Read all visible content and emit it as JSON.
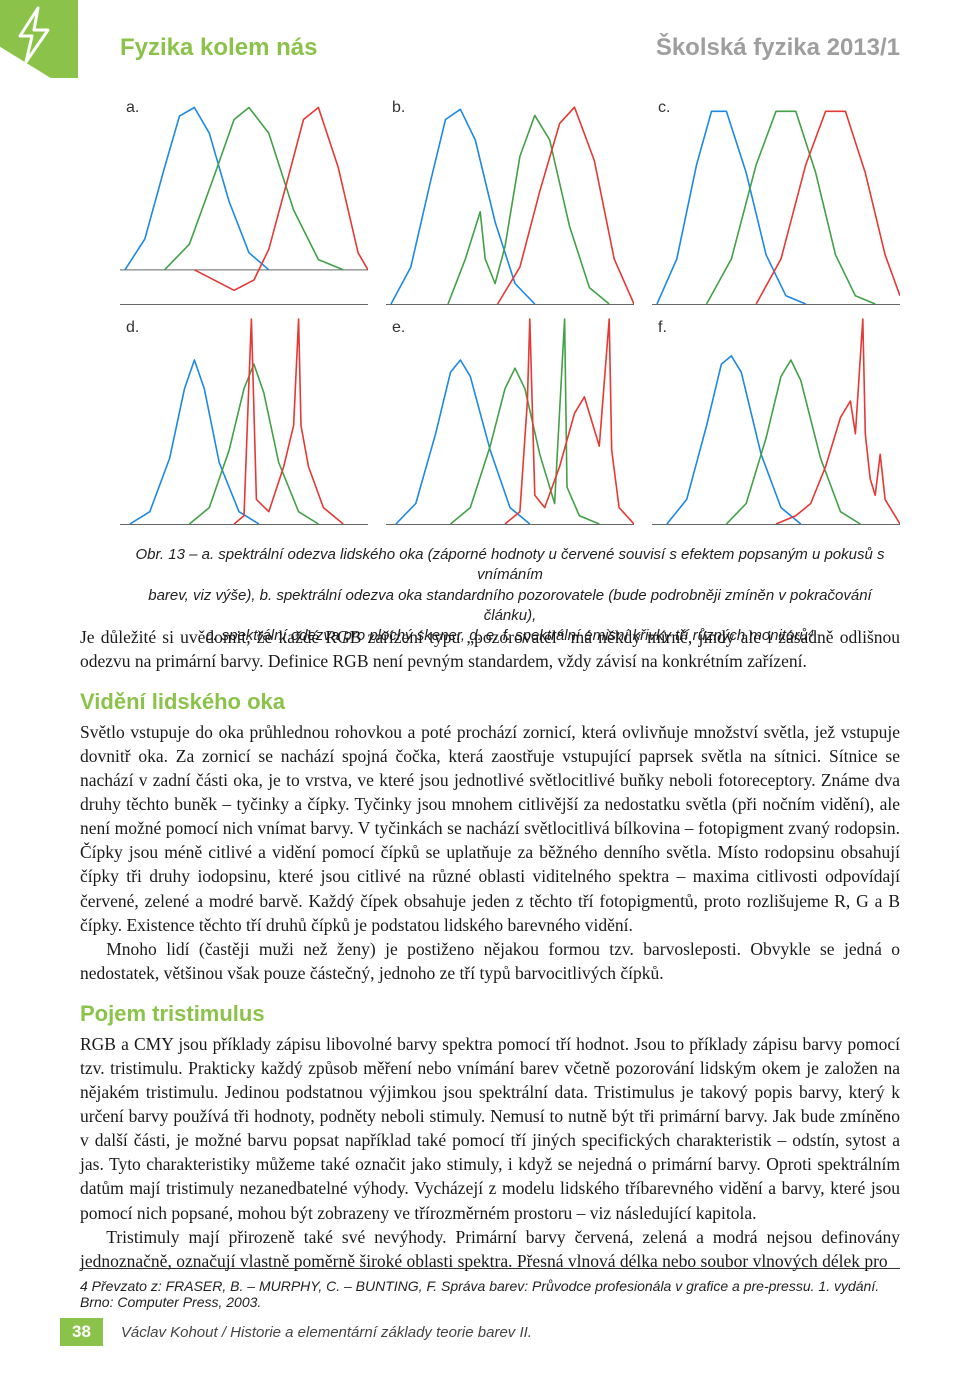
{
  "header": {
    "left": "Fyzika kolem nás",
    "right": "Školská fyzika 2013/1"
  },
  "accent_color": "#8bc34a",
  "muted_color": "#9e9e9e",
  "figure": {
    "panels": [
      "a.",
      "b.",
      "c.",
      "d.",
      "e.",
      "f."
    ],
    "curve_colors": {
      "R": "#e53935",
      "G": "#43a047",
      "B": "#1e88e5"
    },
    "line_width": 1.6,
    "background": "#ffffff",
    "axis_color": "#666666",
    "panel_a": {
      "type": "line",
      "xlim": [
        0,
        100
      ],
      "ylim": [
        -20,
        100
      ],
      "series": {
        "B": [
          [
            2,
            0
          ],
          [
            10,
            18
          ],
          [
            18,
            60
          ],
          [
            24,
            90
          ],
          [
            30,
            95
          ],
          [
            36,
            80
          ],
          [
            44,
            40
          ],
          [
            52,
            10
          ],
          [
            60,
            0
          ]
        ],
        "G": [
          [
            18,
            0
          ],
          [
            28,
            15
          ],
          [
            38,
            55
          ],
          [
            46,
            88
          ],
          [
            52,
            95
          ],
          [
            60,
            80
          ],
          [
            70,
            35
          ],
          [
            80,
            6
          ],
          [
            90,
            0
          ]
        ],
        "R": [
          [
            30,
            0
          ],
          [
            38,
            -6
          ],
          [
            46,
            -12
          ],
          [
            54,
            -6
          ],
          [
            60,
            12
          ],
          [
            68,
            55
          ],
          [
            74,
            88
          ],
          [
            80,
            95
          ],
          [
            88,
            60
          ],
          [
            96,
            10
          ],
          [
            100,
            0
          ]
        ]
      }
    },
    "panel_b": {
      "type": "line",
      "xlim": [
        0,
        100
      ],
      "ylim": [
        0,
        100
      ],
      "series": {
        "B": [
          [
            2,
            0
          ],
          [
            10,
            18
          ],
          [
            18,
            60
          ],
          [
            24,
            90
          ],
          [
            30,
            95
          ],
          [
            36,
            80
          ],
          [
            44,
            40
          ],
          [
            52,
            10
          ],
          [
            60,
            0
          ]
        ],
        "G": [
          [
            25,
            0
          ],
          [
            32,
            22
          ],
          [
            38,
            45
          ],
          [
            40,
            22
          ],
          [
            44,
            10
          ],
          [
            48,
            28
          ],
          [
            54,
            72
          ],
          [
            60,
            92
          ],
          [
            66,
            80
          ],
          [
            74,
            38
          ],
          [
            82,
            8
          ],
          [
            90,
            0
          ]
        ],
        "R": [
          [
            45,
            0
          ],
          [
            54,
            18
          ],
          [
            62,
            55
          ],
          [
            70,
            88
          ],
          [
            76,
            96
          ],
          [
            84,
            70
          ],
          [
            92,
            22
          ],
          [
            100,
            0
          ]
        ]
      }
    },
    "panel_c": {
      "type": "line",
      "xlim": [
        0,
        100
      ],
      "ylim": [
        0,
        100
      ],
      "series": {
        "B": [
          [
            2,
            0
          ],
          [
            10,
            22
          ],
          [
            18,
            68
          ],
          [
            24,
            94
          ],
          [
            30,
            94
          ],
          [
            38,
            64
          ],
          [
            46,
            24
          ],
          [
            54,
            4
          ],
          [
            62,
            0
          ]
        ],
        "G": [
          [
            22,
            0
          ],
          [
            32,
            22
          ],
          [
            42,
            68
          ],
          [
            50,
            94
          ],
          [
            58,
            94
          ],
          [
            66,
            64
          ],
          [
            74,
            24
          ],
          [
            82,
            4
          ],
          [
            90,
            0
          ]
        ],
        "R": [
          [
            42,
            0
          ],
          [
            52,
            22
          ],
          [
            62,
            68
          ],
          [
            70,
            94
          ],
          [
            78,
            94
          ],
          [
            86,
            64
          ],
          [
            94,
            24
          ],
          [
            100,
            4
          ]
        ]
      }
    },
    "panel_d": {
      "type": "line",
      "xlim": [
        0,
        100
      ],
      "ylim": [
        0,
        100
      ],
      "series": {
        "B": [
          [
            4,
            0
          ],
          [
            12,
            6
          ],
          [
            20,
            32
          ],
          [
            26,
            66
          ],
          [
            30,
            80
          ],
          [
            34,
            66
          ],
          [
            40,
            30
          ],
          [
            48,
            6
          ],
          [
            56,
            0
          ]
        ],
        "G": [
          [
            28,
            0
          ],
          [
            36,
            8
          ],
          [
            44,
            36
          ],
          [
            50,
            66
          ],
          [
            54,
            78
          ],
          [
            58,
            64
          ],
          [
            64,
            30
          ],
          [
            72,
            6
          ],
          [
            80,
            0
          ]
        ],
        "R": [
          [
            46,
            0
          ],
          [
            50,
            4
          ],
          [
            52,
            70
          ],
          [
            53,
            100
          ],
          [
            55,
            12
          ],
          [
            60,
            6
          ],
          [
            66,
            28
          ],
          [
            70,
            48
          ],
          [
            72,
            100
          ],
          [
            73,
            48
          ],
          [
            76,
            28
          ],
          [
            82,
            8
          ],
          [
            90,
            0
          ]
        ]
      }
    },
    "panel_e": {
      "type": "line",
      "xlim": [
        0,
        100
      ],
      "ylim": [
        0,
        100
      ],
      "series": {
        "B": [
          [
            4,
            0
          ],
          [
            12,
            10
          ],
          [
            20,
            44
          ],
          [
            26,
            74
          ],
          [
            30,
            80
          ],
          [
            34,
            72
          ],
          [
            42,
            36
          ],
          [
            50,
            8
          ],
          [
            58,
            0
          ]
        ],
        "G": [
          [
            26,
            0
          ],
          [
            34,
            8
          ],
          [
            42,
            38
          ],
          [
            48,
            66
          ],
          [
            52,
            76
          ],
          [
            56,
            66
          ],
          [
            62,
            34
          ],
          [
            68,
            10
          ],
          [
            72,
            100
          ],
          [
            73,
            18
          ],
          [
            78,
            4
          ],
          [
            86,
            0
          ]
        ],
        "R": [
          [
            48,
            0
          ],
          [
            54,
            6
          ],
          [
            57,
            60
          ],
          [
            58,
            100
          ],
          [
            60,
            14
          ],
          [
            64,
            8
          ],
          [
            70,
            28
          ],
          [
            76,
            54
          ],
          [
            80,
            62
          ],
          [
            86,
            38
          ],
          [
            90,
            100
          ],
          [
            91,
            36
          ],
          [
            94,
            8
          ],
          [
            100,
            0
          ]
        ]
      }
    },
    "panel_f": {
      "type": "line",
      "xlim": [
        0,
        100
      ],
      "ylim": [
        0,
        100
      ],
      "series": {
        "B": [
          [
            6,
            0
          ],
          [
            14,
            12
          ],
          [
            22,
            48
          ],
          [
            28,
            78
          ],
          [
            32,
            82
          ],
          [
            36,
            74
          ],
          [
            44,
            34
          ],
          [
            52,
            8
          ],
          [
            60,
            0
          ]
        ],
        "G": [
          [
            30,
            0
          ],
          [
            38,
            10
          ],
          [
            46,
            42
          ],
          [
            52,
            72
          ],
          [
            56,
            80
          ],
          [
            60,
            70
          ],
          [
            68,
            32
          ],
          [
            76,
            6
          ],
          [
            84,
            0
          ]
        ],
        "R": [
          [
            50,
            0
          ],
          [
            58,
            4
          ],
          [
            64,
            10
          ],
          [
            70,
            28
          ],
          [
            76,
            52
          ],
          [
            80,
            60
          ],
          [
            82,
            44
          ],
          [
            85,
            100
          ],
          [
            86,
            44
          ],
          [
            88,
            22
          ],
          [
            90,
            14
          ],
          [
            92,
            34
          ],
          [
            94,
            12
          ],
          [
            100,
            0
          ]
        ]
      }
    }
  },
  "caption_lines": [
    "Obr. 13 – a. spektrální odezva lidského oka (záporné hodnoty u červené souvisí s efektem popsaným u pokusů s vnímáním",
    "barev, viz výše), b. spektrální odezva oka standardního pozorovatele (bude podrobněji zmíněn v pokračování článku),",
    "c. spektrální odezva pro plochý skener, d. e. f. spektrální emisní křivky tří různých monitorů⁴"
  ],
  "para1": "Je důležité si uvědomit, že každé RGB zařízení typu „pozorovatel“ má někdy mírně, jindy ale i zásadně odlišnou odezvu na primární barvy. Definice RGB není pevným standardem, vždy závisí na konkrétním zařízení.",
  "section1_title": "Vidění lidského oka",
  "section1_p1": "Světlo vstupuje do oka průhlednou rohovkou a poté prochází zornicí, která ovlivňuje množství světla, jež vstupuje dovnitř oka. Za zornicí se nachází spojná čočka, která zaostřuje vstupující paprsek světla na sítnici. Sítnice se nachází v zadní části oka, je to vrstva, ve které jsou jednotlivé světlocitlivé buňky neboli fotoreceptory. Známe dva druhy těchto buněk – tyčinky a čípky. Tyčinky jsou mnohem citlivější za nedostatku světla (při nočním vidění), ale není možné pomocí nich vnímat barvy. V tyčinkách se nachází světlocitlivá bílkovina – fotopigment zvaný rodopsin. Čípky jsou méně citlivé a vidění pomocí čípků se uplatňuje za běžného denního světla. Místo rodopsinu obsahují čípky tři druhy iodopsinu, které jsou citlivé na různé oblasti viditelného spektra – maxima citlivosti odpovídají červené, zelené a modré barvě. Každý čípek obsahuje jeden z těchto tří fotopigmentů, proto rozlišujeme R, G a B čípky. Existence těchto tří druhů čípků je podstatou lidského barevného vidění.",
  "section1_p2": "Mnoho lidí (častěji muži než ženy) je postiženo nějakou formou tzv. barvosleposti. Obvykle se jedná o nedostatek, většinou však pouze částečný, jednoho ze tří typů barvocitlivých čípků.",
  "section2_title": "Pojem tristimulus",
  "section2_p1": "RGB a CMY jsou příklady zápisu libovolné barvy spektra pomocí tří hodnot. Jsou to příklady zápisu barvy pomocí tzv. tristimulu. Prakticky každý způsob měření nebo vnímání barev včetně pozorování lidským okem je založen na nějakém tristimulu. Jedinou podstatnou výjimkou jsou spektrální data. Tristimulus je takový popis barvy, který k určení barvy používá tři hodnoty, podněty neboli stimuly. Nemusí to nutně být tři primární barvy. Jak bude zmíněno v další části, je možné barvu popsat například také pomocí tří jiných specifických charakteristik – odstín, sytost a jas. Tyto charakteristiky můžeme také označit jako stimuly, i když se nejedná o primární barvy. Oproti spektrálním datům mají tristimuly nezanedbatelné výhody. Vycházejí z modelu lidského tříbarevného vidění a barvy, které jsou pomocí nich popsané, mohou být zobrazeny ve třírozměrném prostoru – viz následující kapitola.",
  "section2_p2": "Tristimuly mají přirozeně také své nevýhody. Primární barvy červená, zelená a modrá nejsou definovány jednoznačně, označují vlastně poměrně široké oblasti spektra. Přesná vlnová délka nebo soubor vlnových délek pro",
  "footnote": "4  Převzato z: FRASER, B. – MURPHY, C. – BUNTING, F. Správa barev: Průvodce profesionála v grafice a pre-pressu. 1. vydání. Brno: Computer Press, 2003.",
  "footer": {
    "page": "38",
    "text": "Václav Kohout / Historie a elementární základy teorie barev II."
  }
}
